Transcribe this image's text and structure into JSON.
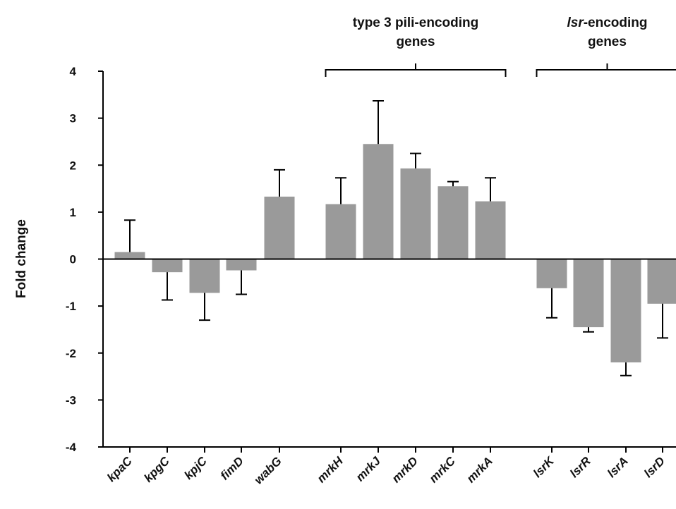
{
  "chart_data": {
    "type": "bar",
    "ylabel": "Fold change",
    "ylim": [
      -4,
      4
    ],
    "yticks": [
      "4",
      "3",
      "2",
      "1",
      "0",
      "-1",
      "-2",
      "-3",
      "-4"
    ],
    "categories": [
      "kpaC",
      "kpgC",
      "kpjC",
      "fimD",
      "wabG",
      "mrkH",
      "mrkJ",
      "mrkD",
      "mrkC",
      "mrkA",
      "lsrK",
      "lsrR",
      "lsrA",
      "lsrD"
    ],
    "values": [
      0.15,
      -0.28,
      -0.72,
      -0.24,
      1.33,
      1.17,
      2.45,
      1.93,
      1.55,
      1.23,
      -0.62,
      -1.45,
      -2.2,
      -0.95
    ],
    "error_upper": [
      0.83,
      -0.87,
      -1.3,
      -0.75,
      1.9,
      1.73,
      3.37,
      2.25,
      1.65,
      1.73,
      -1.25,
      -1.55,
      -2.48,
      -1.68
    ],
    "groups": [
      {
        "label_parts": [
          {
            "text": "type 3 pili-encoding",
            "italic": false
          }
        ],
        "label_line2": "genes",
        "members": [
          "mrkH",
          "mrkJ",
          "mrkD",
          "mrkC",
          "mrkA"
        ]
      },
      {
        "label_parts": [
          {
            "text": "lsr",
            "italic": true
          },
          {
            "text": "-encoding",
            "italic": false
          }
        ],
        "label_line2": "genes",
        "members": [
          "lsrK",
          "lsrR",
          "lsrA",
          "lsrD"
        ]
      }
    ],
    "bar_color": "#9a9a9a",
    "grid": false
  }
}
